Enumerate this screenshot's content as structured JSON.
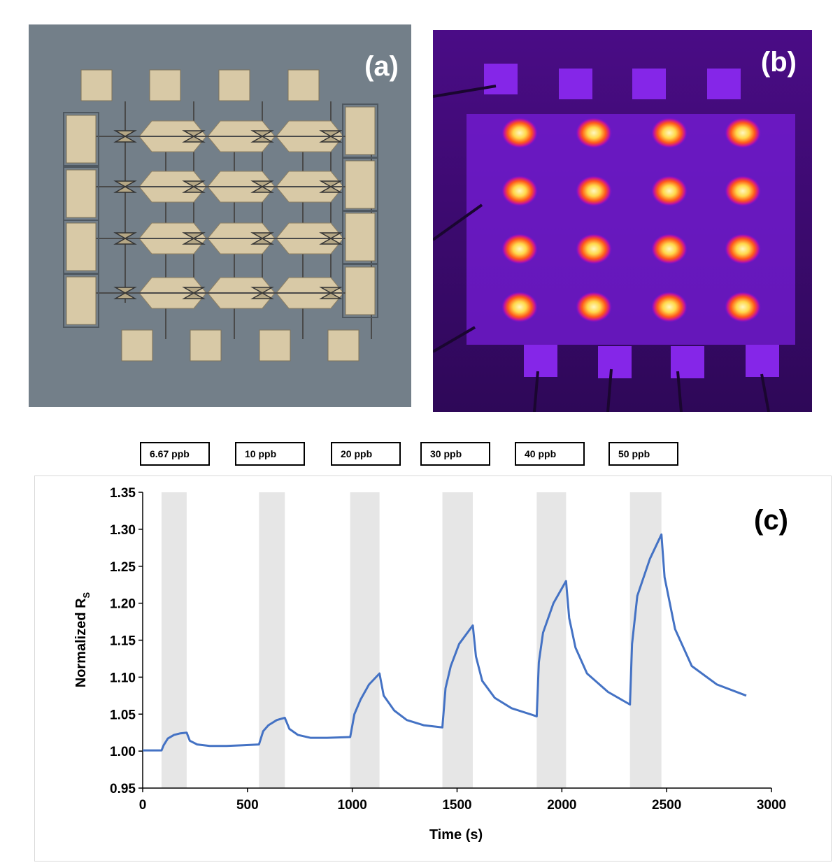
{
  "panels": {
    "a": {
      "label": "(a)"
    },
    "b": {
      "label": "(b)"
    },
    "c": {
      "label": "(c)"
    }
  },
  "colors": {
    "panel_a_bg": "#737f89",
    "pad": "#d8c9a6",
    "trace": "#4472c4",
    "exposure_band": "#e6e6e6",
    "thermal_bg": "#3a0a6e",
    "hotspot": "#ffd84a"
  },
  "concentration_boxes": [
    "6.67 ppb",
    "10 ppb",
    "20 ppb",
    "30 ppb",
    "40 ppb",
    "50 ppb"
  ],
  "chart_data": {
    "type": "line",
    "xlabel": "Time (s)",
    "ylabel_main": "Normalized R",
    "ylabel_sub": "S",
    "xlim": [
      0,
      3000
    ],
    "ylim": [
      0.95,
      1.35
    ],
    "x_ticks": [
      "0",
      "500",
      "1000",
      "1500",
      "2000",
      "2500",
      "3000"
    ],
    "y_ticks": [
      "0.95",
      "1.00",
      "1.05",
      "1.10",
      "1.15",
      "1.20",
      "1.25",
      "1.30",
      "1.35"
    ],
    "exposure_windows": [
      [
        90,
        210
      ],
      [
        555,
        678
      ],
      [
        990,
        1130
      ],
      [
        1430,
        1575
      ],
      [
        1880,
        2020
      ],
      [
        2325,
        2475
      ]
    ],
    "series": [
      {
        "x": [
          0,
          90,
          100,
          120,
          150,
          180,
          210,
          225,
          260,
          320,
          400,
          480,
          555,
          575,
          600,
          640,
          678,
          700,
          740,
          800,
          880,
          990,
          1010,
          1040,
          1080,
          1130,
          1150,
          1200,
          1260,
          1340,
          1430,
          1445,
          1470,
          1510,
          1575,
          1590,
          1620,
          1680,
          1760,
          1880,
          1890,
          1910,
          1960,
          2020,
          2035,
          2065,
          2120,
          2220,
          2325,
          2335,
          2360,
          2420,
          2475,
          2490,
          2540,
          2620,
          2740,
          2880
        ],
        "y": [
          1.001,
          1.001,
          1.008,
          1.017,
          1.022,
          1.024,
          1.025,
          1.014,
          1.009,
          1.007,
          1.007,
          1.008,
          1.009,
          1.027,
          1.035,
          1.042,
          1.045,
          1.03,
          1.022,
          1.018,
          1.018,
          1.019,
          1.05,
          1.07,
          1.09,
          1.105,
          1.075,
          1.055,
          1.042,
          1.035,
          1.032,
          1.085,
          1.115,
          1.145,
          1.17,
          1.128,
          1.095,
          1.072,
          1.058,
          1.047,
          1.12,
          1.16,
          1.2,
          1.23,
          1.18,
          1.14,
          1.105,
          1.08,
          1.063,
          1.145,
          1.21,
          1.26,
          1.293,
          1.235,
          1.165,
          1.115,
          1.09,
          1.075
        ]
      }
    ]
  }
}
